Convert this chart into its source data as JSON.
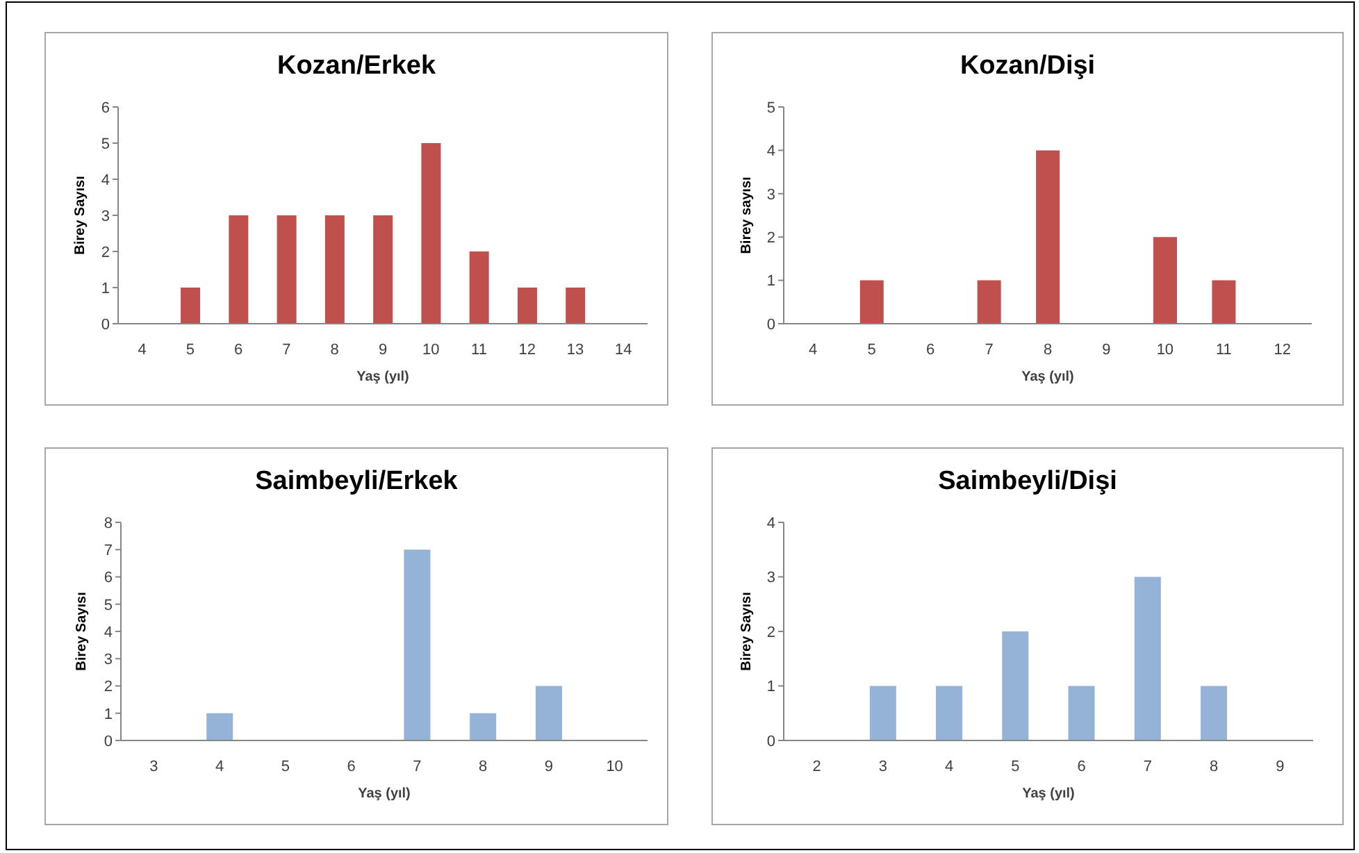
{
  "chart_data": [
    {
      "type": "bar",
      "title": "Kozan/Erkek",
      "xlabel": "Yaş (yıl)",
      "ylabel": "Birey Sayısı",
      "categories": [
        "4",
        "5",
        "6",
        "7",
        "8",
        "9",
        "10",
        "11",
        "12",
        "13",
        "14"
      ],
      "values": [
        0,
        1,
        3,
        3,
        3,
        3,
        5,
        2,
        1,
        1,
        0
      ],
      "color": "#c0504d",
      "ylim": [
        0,
        6
      ],
      "yticks": [
        0,
        1,
        2,
        3,
        4,
        5,
        6
      ]
    },
    {
      "type": "bar",
      "title": "Kozan/Dişi",
      "xlabel": "Yaş (yıl)",
      "ylabel": "Birey sayısı",
      "categories": [
        "4",
        "5",
        "6",
        "7",
        "8",
        "9",
        "10",
        "11",
        "12"
      ],
      "values": [
        0,
        1,
        0,
        1,
        4,
        0,
        2,
        1,
        0
      ],
      "color": "#c0504d",
      "ylim": [
        0,
        5
      ],
      "yticks": [
        0,
        1,
        2,
        3,
        4,
        5
      ]
    },
    {
      "type": "bar",
      "title": "Saimbeyli/Erkek",
      "xlabel": "Yaş (yıl)",
      "ylabel": "Birey Sayısı",
      "categories": [
        "3",
        "4",
        "5",
        "6",
        "7",
        "8",
        "9",
        "10"
      ],
      "values": [
        0,
        1,
        0,
        0,
        7,
        1,
        2,
        0
      ],
      "color": "#95b3d7",
      "ylim": [
        0,
        8
      ],
      "yticks": [
        0,
        1,
        2,
        3,
        4,
        5,
        6,
        7,
        8
      ]
    },
    {
      "type": "bar",
      "title": "Saimbeyli/Dişi",
      "xlabel": "Yaş (yıl)",
      "ylabel": "Birey Sayısı",
      "categories": [
        "2",
        "3",
        "4",
        "5",
        "6",
        "7",
        "8",
        "9"
      ],
      "values": [
        0,
        1,
        1,
        2,
        1,
        3,
        1,
        0
      ],
      "color": "#95b3d7",
      "ylim": [
        0,
        4
      ],
      "yticks": [
        0,
        1,
        2,
        3,
        4
      ]
    }
  ]
}
